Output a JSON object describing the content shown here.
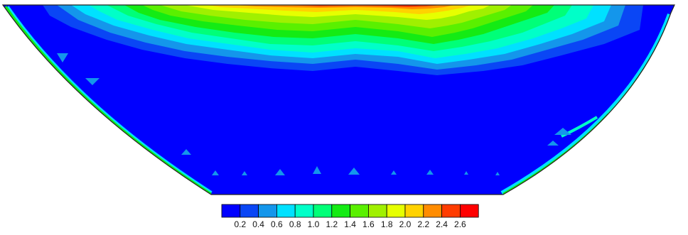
{
  "chart_data": {
    "type": "heatmap",
    "title": "",
    "xlabel": "",
    "ylabel": "",
    "colorbar": {
      "orientation": "horizontal",
      "placement": "bottom-center",
      "levels": [
        "0.2",
        "0.4",
        "0.6",
        "0.8",
        "1.0",
        "1.2",
        "1.4",
        "1.6",
        "1.8",
        "2.0",
        "2.2",
        "2.4",
        "2.6"
      ],
      "colors": [
        "#0000ff",
        "#0a46f5",
        "#1496eb",
        "#00e1ff",
        "#00ffc8",
        "#00ff78",
        "#14eb14",
        "#5af000",
        "#a0f000",
        "#e6ff00",
        "#ffd200",
        "#ff8c00",
        "#ff3c00",
        "#ff0000"
      ]
    },
    "field": {
      "domain_shape": "inverted trapezoid (channel cross-section)",
      "background_color": "#0000ff",
      "high_value_region": "top surface, peak near center",
      "max_level": "2.6"
    }
  }
}
